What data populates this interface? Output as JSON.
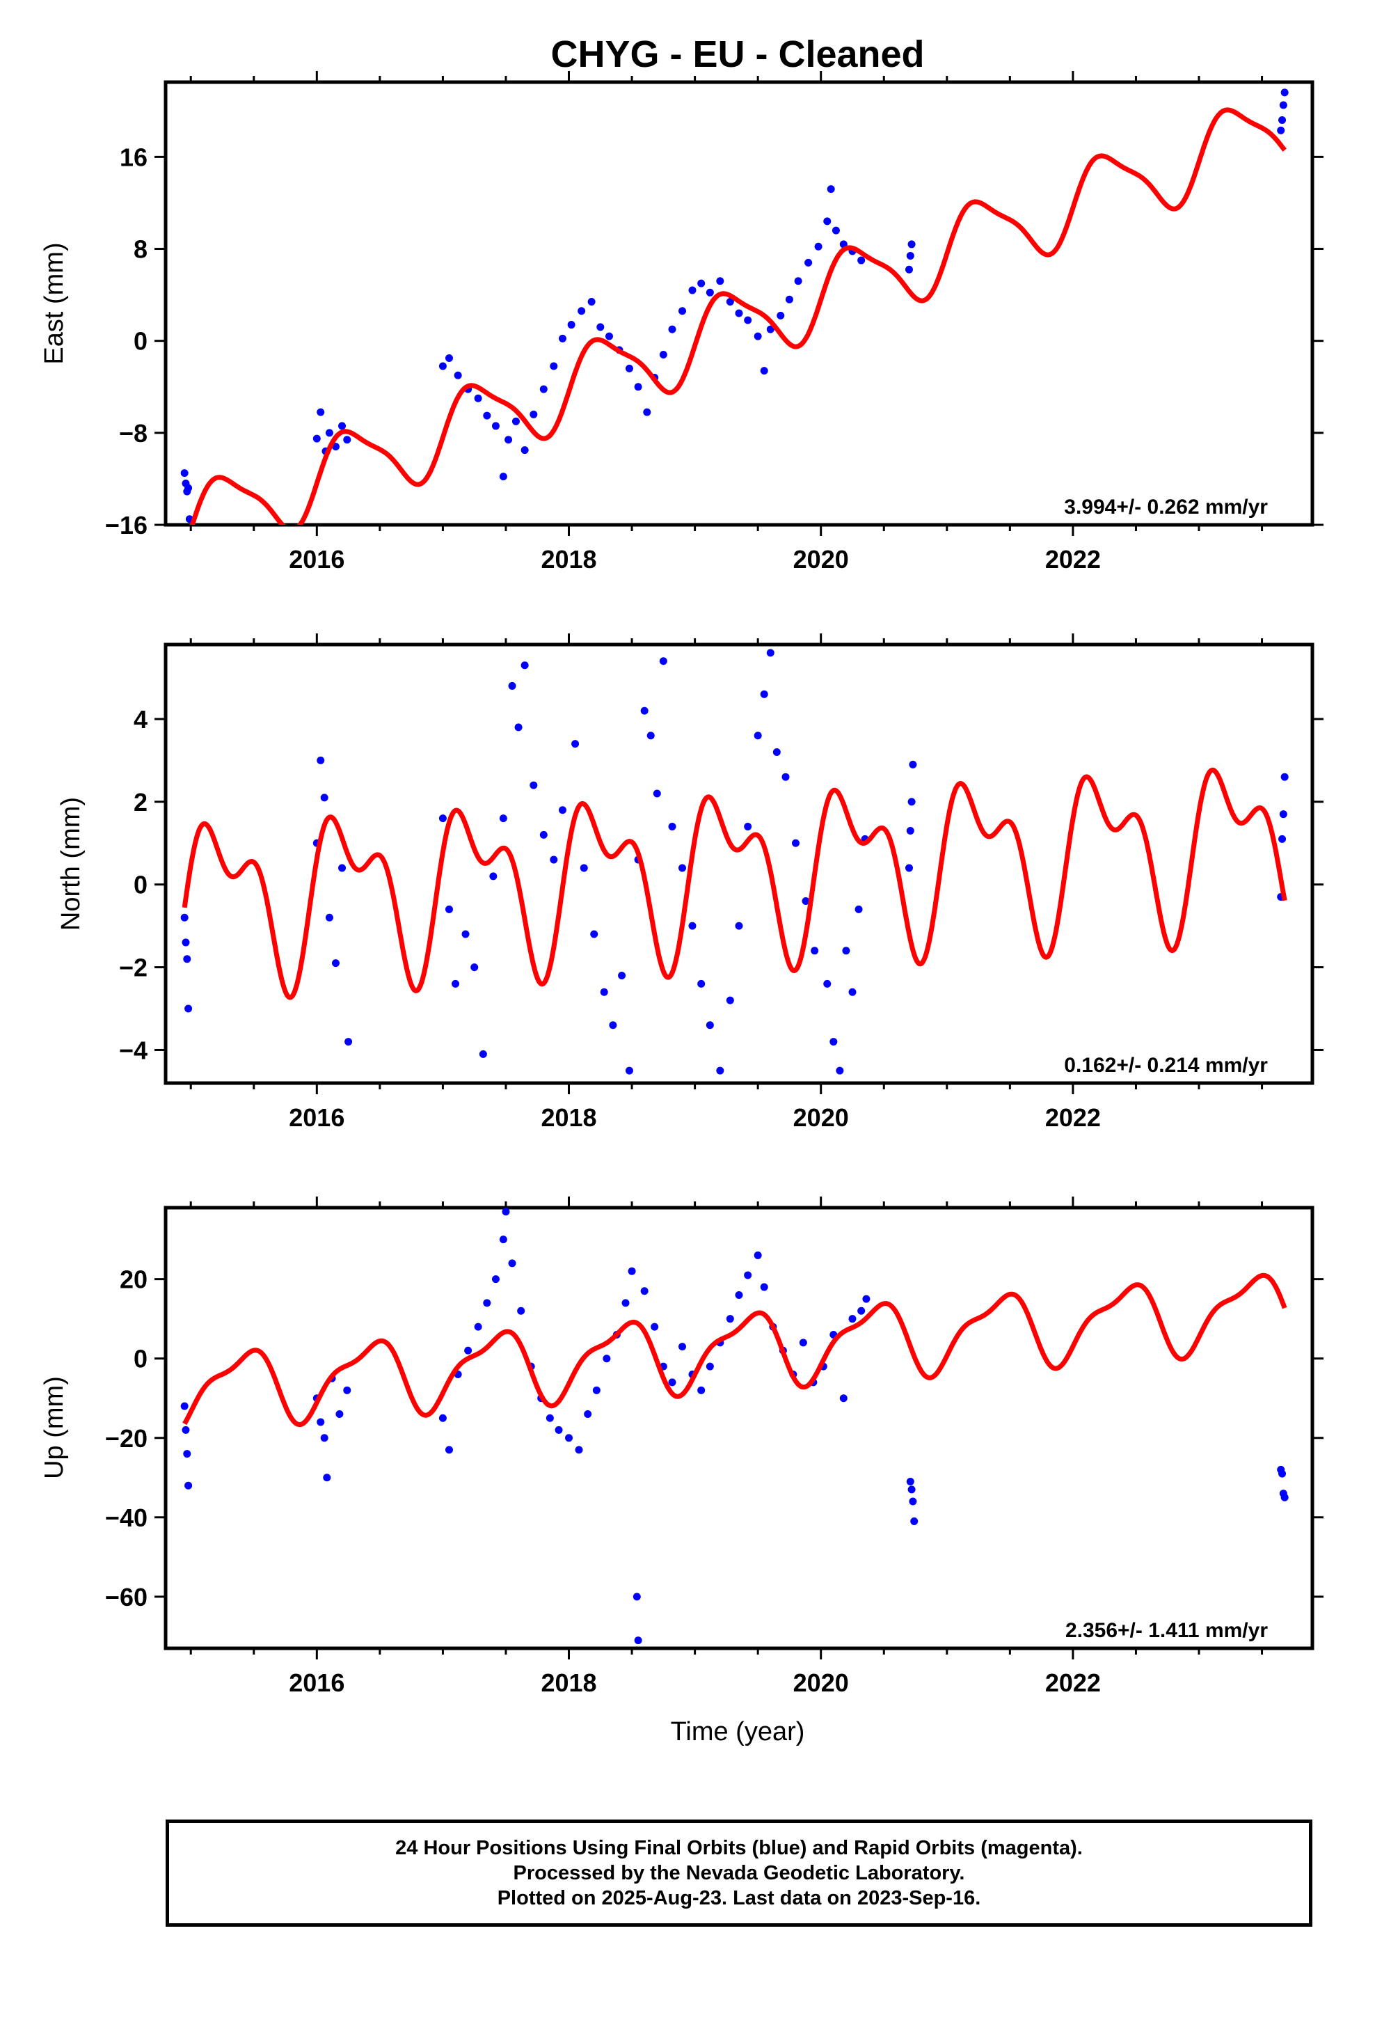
{
  "title": "CHYG  - EU - Cleaned",
  "xlabel": "Time (year)",
  "footer": {
    "line1": "24 Hour Positions Using Final Orbits (blue) and Rapid Orbits (magenta).",
    "line2": "Processed by the Nevada Geodetic Laboratory.",
    "line3": "Plotted on 2025-Aug-23. Last data on 2023-Sep-16."
  },
  "colors": {
    "points": "#0000ff",
    "model": "#ff0000",
    "frame": "#000000"
  },
  "chart_data": [
    {
      "type": "scatter",
      "ylabel": "East (mm)",
      "rate_label": "3.994+/- 0.262 mm/yr",
      "xlim": [
        2014.8,
        2023.9
      ],
      "ylim": [
        -16,
        22.5
      ],
      "xticks": [
        2016,
        2018,
        2020,
        2022
      ],
      "yticks": [
        -16,
        -8,
        0,
        8,
        16
      ],
      "model": {
        "offset": -8.0,
        "reference_year": 2017.0,
        "rate": 3.994,
        "annual_amp": 3.2,
        "annual_phase": -0.15,
        "semiannual_amp": 0.8,
        "semiannual_phase": 0.1
      },
      "observations": [
        {
          "year": 2014.95,
          "value": -11.5
        },
        {
          "year": 2014.96,
          "value": -12.4
        },
        {
          "year": 2014.97,
          "value": -13.1
        },
        {
          "year": 2014.98,
          "value": -12.8
        },
        {
          "year": 2014.99,
          "value": -15.5
        },
        {
          "year": 2016.0,
          "value": -8.5
        },
        {
          "year": 2016.03,
          "value": -6.2
        },
        {
          "year": 2016.07,
          "value": -9.6
        },
        {
          "year": 2016.1,
          "value": -8.0
        },
        {
          "year": 2016.15,
          "value": -9.2
        },
        {
          "year": 2016.2,
          "value": -7.4
        },
        {
          "year": 2016.24,
          "value": -8.6
        },
        {
          "year": 2017.0,
          "value": -2.2
        },
        {
          "year": 2017.05,
          "value": -1.5
        },
        {
          "year": 2017.12,
          "value": -3.0
        },
        {
          "year": 2017.2,
          "value": -4.2
        },
        {
          "year": 2017.28,
          "value": -5.0
        },
        {
          "year": 2017.35,
          "value": -6.5
        },
        {
          "year": 2017.42,
          "value": -7.4
        },
        {
          "year": 2017.48,
          "value": -11.8
        },
        {
          "year": 2017.52,
          "value": -8.6
        },
        {
          "year": 2017.58,
          "value": -7.0
        },
        {
          "year": 2017.65,
          "value": -9.5
        },
        {
          "year": 2017.72,
          "value": -6.4
        },
        {
          "year": 2017.8,
          "value": -4.2
        },
        {
          "year": 2017.88,
          "value": -2.2
        },
        {
          "year": 2017.95,
          "value": 0.2
        },
        {
          "year": 2018.02,
          "value": 1.4
        },
        {
          "year": 2018.1,
          "value": 2.6
        },
        {
          "year": 2018.18,
          "value": 3.4
        },
        {
          "year": 2018.25,
          "value": 1.2
        },
        {
          "year": 2018.32,
          "value": 0.4
        },
        {
          "year": 2018.4,
          "value": -0.8
        },
        {
          "year": 2018.48,
          "value": -2.4
        },
        {
          "year": 2018.55,
          "value": -4.0
        },
        {
          "year": 2018.62,
          "value": -6.2
        },
        {
          "year": 2018.68,
          "value": -3.2
        },
        {
          "year": 2018.75,
          "value": -1.2
        },
        {
          "year": 2018.82,
          "value": 1.0
        },
        {
          "year": 2018.9,
          "value": 2.6
        },
        {
          "year": 2018.98,
          "value": 4.4
        },
        {
          "year": 2019.05,
          "value": 5.0
        },
        {
          "year": 2019.12,
          "value": 4.2
        },
        {
          "year": 2019.2,
          "value": 5.2
        },
        {
          "year": 2019.28,
          "value": 3.4
        },
        {
          "year": 2019.35,
          "value": 2.4
        },
        {
          "year": 2019.42,
          "value": 1.8
        },
        {
          "year": 2019.5,
          "value": 0.4
        },
        {
          "year": 2019.55,
          "value": -2.6
        },
        {
          "year": 2019.6,
          "value": 1.0
        },
        {
          "year": 2019.68,
          "value": 2.2
        },
        {
          "year": 2019.75,
          "value": 3.6
        },
        {
          "year": 2019.82,
          "value": 5.2
        },
        {
          "year": 2019.9,
          "value": 6.8
        },
        {
          "year": 2019.98,
          "value": 8.2
        },
        {
          "year": 2020.05,
          "value": 10.4
        },
        {
          "year": 2020.08,
          "value": 13.2
        },
        {
          "year": 2020.12,
          "value": 9.6
        },
        {
          "year": 2020.18,
          "value": 8.4
        },
        {
          "year": 2020.25,
          "value": 7.8
        },
        {
          "year": 2020.32,
          "value": 7.0
        },
        {
          "year": 2020.7,
          "value": 6.2
        },
        {
          "year": 2020.71,
          "value": 7.4
        },
        {
          "year": 2020.72,
          "value": 8.4
        },
        {
          "year": 2023.65,
          "value": 18.3
        },
        {
          "year": 2023.66,
          "value": 19.2
        },
        {
          "year": 2023.67,
          "value": 20.5
        },
        {
          "year": 2023.68,
          "value": 21.6
        }
      ]
    },
    {
      "type": "scatter",
      "ylabel": "North (mm)",
      "rate_label": "0.162+/- 0.214 mm/yr",
      "xlim": [
        2014.8,
        2023.9
      ],
      "ylim": [
        -4.8,
        5.8
      ],
      "xticks": [
        2016,
        2018,
        2020,
        2022
      ],
      "yticks": [
        -4,
        -2,
        0,
        2,
        4
      ],
      "model": {
        "offset": 0.0,
        "reference_year": 2017.0,
        "rate": 0.162,
        "annual_amp": 1.6,
        "annual_phase": 0.0,
        "semiannual_amp": 1.0,
        "semiannual_phase": 0.9
      },
      "observations": [
        {
          "year": 2014.95,
          "value": -0.8
        },
        {
          "year": 2014.96,
          "value": -1.4
        },
        {
          "year": 2014.97,
          "value": -1.8
        },
        {
          "year": 2014.98,
          "value": -3.0
        },
        {
          "year": 2016.0,
          "value": 1.0
        },
        {
          "year": 2016.03,
          "value": 3.0
        },
        {
          "year": 2016.06,
          "value": 2.1
        },
        {
          "year": 2016.1,
          "value": -0.8
        },
        {
          "year": 2016.15,
          "value": -1.9
        },
        {
          "year": 2016.2,
          "value": 0.4
        },
        {
          "year": 2016.25,
          "value": -3.8
        },
        {
          "year": 2017.0,
          "value": 1.6
        },
        {
          "year": 2017.05,
          "value": -0.6
        },
        {
          "year": 2017.1,
          "value": -2.4
        },
        {
          "year": 2017.18,
          "value": -1.2
        },
        {
          "year": 2017.25,
          "value": -2.0
        },
        {
          "year": 2017.32,
          "value": -4.1
        },
        {
          "year": 2017.4,
          "value": 0.2
        },
        {
          "year": 2017.48,
          "value": 1.6
        },
        {
          "year": 2017.55,
          "value": 4.8
        },
        {
          "year": 2017.6,
          "value": 3.8
        },
        {
          "year": 2017.65,
          "value": 5.3
        },
        {
          "year": 2017.72,
          "value": 2.4
        },
        {
          "year": 2017.8,
          "value": 1.2
        },
        {
          "year": 2017.88,
          "value": 0.6
        },
        {
          "year": 2017.95,
          "value": 1.8
        },
        {
          "year": 2018.05,
          "value": 3.4
        },
        {
          "year": 2018.12,
          "value": 0.4
        },
        {
          "year": 2018.2,
          "value": -1.2
        },
        {
          "year": 2018.28,
          "value": -2.6
        },
        {
          "year": 2018.35,
          "value": -3.4
        },
        {
          "year": 2018.42,
          "value": -2.2
        },
        {
          "year": 2018.48,
          "value": -4.5
        },
        {
          "year": 2018.55,
          "value": 0.6
        },
        {
          "year": 2018.6,
          "value": 4.2
        },
        {
          "year": 2018.65,
          "value": 3.6
        },
        {
          "year": 2018.7,
          "value": 2.2
        },
        {
          "year": 2018.75,
          "value": 5.4
        },
        {
          "year": 2018.82,
          "value": 1.4
        },
        {
          "year": 2018.9,
          "value": 0.4
        },
        {
          "year": 2018.98,
          "value": -1.0
        },
        {
          "year": 2019.05,
          "value": -2.4
        },
        {
          "year": 2019.12,
          "value": -3.4
        },
        {
          "year": 2019.2,
          "value": -4.5
        },
        {
          "year": 2019.28,
          "value": -2.8
        },
        {
          "year": 2019.35,
          "value": -1.0
        },
        {
          "year": 2019.42,
          "value": 1.4
        },
        {
          "year": 2019.5,
          "value": 3.6
        },
        {
          "year": 2019.55,
          "value": 4.6
        },
        {
          "year": 2019.6,
          "value": 5.6
        },
        {
          "year": 2019.65,
          "value": 3.2
        },
        {
          "year": 2019.72,
          "value": 2.6
        },
        {
          "year": 2019.8,
          "value": 1.0
        },
        {
          "year": 2019.88,
          "value": -0.4
        },
        {
          "year": 2019.95,
          "value": -1.6
        },
        {
          "year": 2020.05,
          "value": -2.4
        },
        {
          "year": 2020.1,
          "value": -3.8
        },
        {
          "year": 2020.15,
          "value": -4.5
        },
        {
          "year": 2020.2,
          "value": -1.6
        },
        {
          "year": 2020.25,
          "value": -2.6
        },
        {
          "year": 2020.3,
          "value": -0.6
        },
        {
          "year": 2020.35,
          "value": 1.1
        },
        {
          "year": 2020.7,
          "value": 0.4
        },
        {
          "year": 2020.71,
          "value": 1.3
        },
        {
          "year": 2020.72,
          "value": 2.0
        },
        {
          "year": 2020.73,
          "value": 2.9
        },
        {
          "year": 2023.65,
          "value": -0.3
        },
        {
          "year": 2023.66,
          "value": 1.1
        },
        {
          "year": 2023.67,
          "value": 1.7
        },
        {
          "year": 2023.68,
          "value": 2.6
        }
      ]
    },
    {
      "type": "scatter",
      "ylabel": "Up (mm)",
      "rate_label": "2.356+/- 1.411 mm/yr",
      "xlim": [
        2014.8,
        2023.9
      ],
      "ylim": [
        -73,
        38
      ],
      "xticks": [
        2016,
        2018,
        2020,
        2022
      ],
      "yticks": [
        -60,
        -40,
        -20,
        0,
        20
      ],
      "model": {
        "offset": -3.0,
        "reference_year": 2017.0,
        "rate": 2.356,
        "annual_amp": 8.5,
        "annual_phase": -1.0,
        "semiannual_amp": 3.0,
        "semiannual_phase": 0.5
      },
      "observations": [
        {
          "year": 2014.95,
          "value": -12.0
        },
        {
          "year": 2014.96,
          "value": -18.0
        },
        {
          "year": 2014.97,
          "value": -24.0
        },
        {
          "year": 2014.98,
          "value": -32.0
        },
        {
          "year": 2016.0,
          "value": -10.0
        },
        {
          "year": 2016.03,
          "value": -16.0
        },
        {
          "year": 2016.06,
          "value": -20.0
        },
        {
          "year": 2016.08,
          "value": -30.0
        },
        {
          "year": 2016.12,
          "value": -5.0
        },
        {
          "year": 2016.18,
          "value": -14.0
        },
        {
          "year": 2016.24,
          "value": -8.0
        },
        {
          "year": 2017.0,
          "value": -15.0
        },
        {
          "year": 2017.05,
          "value": -23.0
        },
        {
          "year": 2017.12,
          "value": -4.0
        },
        {
          "year": 2017.2,
          "value": 2.0
        },
        {
          "year": 2017.28,
          "value": 8.0
        },
        {
          "year": 2017.35,
          "value": 14.0
        },
        {
          "year": 2017.42,
          "value": 20.0
        },
        {
          "year": 2017.48,
          "value": 30.0
        },
        {
          "year": 2017.5,
          "value": 37.0
        },
        {
          "year": 2017.55,
          "value": 24.0
        },
        {
          "year": 2017.62,
          "value": 12.0
        },
        {
          "year": 2017.7,
          "value": -2.0
        },
        {
          "year": 2017.78,
          "value": -10.0
        },
        {
          "year": 2017.85,
          "value": -15.0
        },
        {
          "year": 2017.92,
          "value": -18.0
        },
        {
          "year": 2018.0,
          "value": -20.0
        },
        {
          "year": 2018.08,
          "value": -23.0
        },
        {
          "year": 2018.15,
          "value": -14.0
        },
        {
          "year": 2018.22,
          "value": -8.0
        },
        {
          "year": 2018.3,
          "value": 0.0
        },
        {
          "year": 2018.38,
          "value": 6.0
        },
        {
          "year": 2018.45,
          "value": 14.0
        },
        {
          "year": 2018.5,
          "value": 22.0
        },
        {
          "year": 2018.54,
          "value": -60.0
        },
        {
          "year": 2018.55,
          "value": -71.0
        },
        {
          "year": 2018.6,
          "value": 17.0
        },
        {
          "year": 2018.68,
          "value": 8.0
        },
        {
          "year": 2018.75,
          "value": -2.0
        },
        {
          "year": 2018.82,
          "value": -6.0
        },
        {
          "year": 2018.9,
          "value": 3.0
        },
        {
          "year": 2018.98,
          "value": -4.0
        },
        {
          "year": 2019.05,
          "value": -8.0
        },
        {
          "year": 2019.12,
          "value": -2.0
        },
        {
          "year": 2019.2,
          "value": 4.0
        },
        {
          "year": 2019.28,
          "value": 10.0
        },
        {
          "year": 2019.35,
          "value": 16.0
        },
        {
          "year": 2019.42,
          "value": 21.0
        },
        {
          "year": 2019.5,
          "value": 26.0
        },
        {
          "year": 2019.55,
          "value": 18.0
        },
        {
          "year": 2019.62,
          "value": 8.0
        },
        {
          "year": 2019.7,
          "value": 2.0
        },
        {
          "year": 2019.78,
          "value": -4.0
        },
        {
          "year": 2019.86,
          "value": 4.0
        },
        {
          "year": 2019.94,
          "value": -6.0
        },
        {
          "year": 2020.02,
          "value": -2.0
        },
        {
          "year": 2020.1,
          "value": 6.0
        },
        {
          "year": 2020.18,
          "value": -10.0
        },
        {
          "year": 2020.25,
          "value": 10.0
        },
        {
          "year": 2020.32,
          "value": 12.0
        },
        {
          "year": 2020.36,
          "value": 15.0
        },
        {
          "year": 2020.71,
          "value": -31.0
        },
        {
          "year": 2020.72,
          "value": -33.0
        },
        {
          "year": 2020.73,
          "value": -36.0
        },
        {
          "year": 2020.74,
          "value": -41.0
        },
        {
          "year": 2023.65,
          "value": -28.0
        },
        {
          "year": 2023.66,
          "value": -29.0
        },
        {
          "year": 2023.67,
          "value": -34.0
        },
        {
          "year": 2023.68,
          "value": -35.0
        }
      ]
    }
  ]
}
